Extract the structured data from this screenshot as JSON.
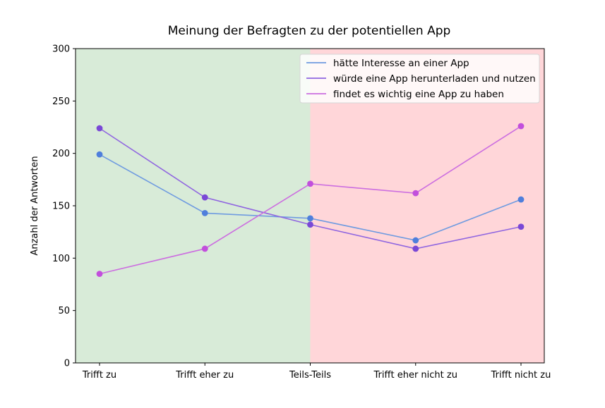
{
  "chart_data": {
    "type": "line",
    "title": "Meinung der Befragten zu der potentiellen App",
    "xlabel": "",
    "ylabel": "Anzahl der Antworten",
    "categories": [
      "Trifft zu",
      "Trifft eher zu",
      "Teils-Teils",
      "Trifft eher nicht zu",
      "Trifft nicht zu"
    ],
    "ylim": [
      0,
      300
    ],
    "yticks": [
      0,
      50,
      100,
      150,
      200,
      250,
      300
    ],
    "grid": false,
    "legend_position": "top-right",
    "background_regions": [
      {
        "from": 0,
        "to": 2,
        "color": "#d8ebd8"
      },
      {
        "from": 2,
        "to": 4,
        "color": "#ffd6d9"
      }
    ],
    "series": [
      {
        "name": "hätte Interesse an einer App",
        "values": [
          199,
          143,
          138,
          117,
          156
        ],
        "color": "#6f9be0",
        "marker_color": "#4f7fdc"
      },
      {
        "name": "würde eine App herunterladen und nutzen",
        "values": [
          224,
          158,
          132,
          109,
          130
        ],
        "color": "#9066e0",
        "marker_color": "#7a48d6"
      },
      {
        "name": "findet es wichtig eine App zu haben",
        "values": [
          85,
          109,
          171,
          162,
          226
        ],
        "color": "#cc6ee0",
        "marker_color": "#c24fdc"
      }
    ]
  }
}
